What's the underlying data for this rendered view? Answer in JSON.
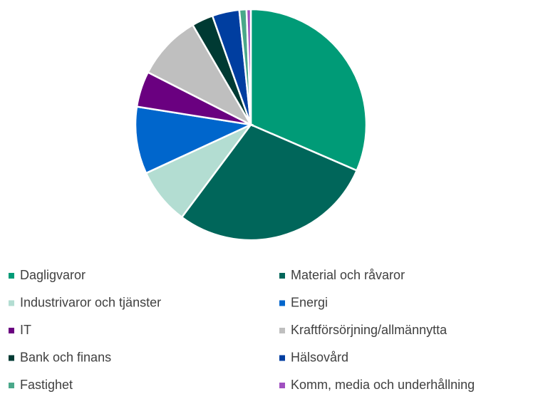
{
  "chart_data": {
    "type": "pie",
    "categories": [
      "Dagligvaror",
      "Material och råvaror",
      "Industrivaror och tjänster",
      "Energi",
      "IT",
      "Kraftförsörjning/allmännytta",
      "Bank och finans",
      "Hälsovård",
      "Fastighet",
      "Komm, media och underhållning"
    ],
    "values": [
      31.5,
      28.7,
      7.9,
      9.4,
      5.0,
      9.1,
      3.0,
      3.8,
      1.0,
      0.6
    ],
    "colors": [
      "#009b77",
      "#00665a",
      "#b3ddd2",
      "#0066cc",
      "#6a0080",
      "#bfbfbf",
      "#003a33",
      "#003ea0",
      "#4aa88a",
      "#a050c0"
    ],
    "legend": "bottom"
  }
}
